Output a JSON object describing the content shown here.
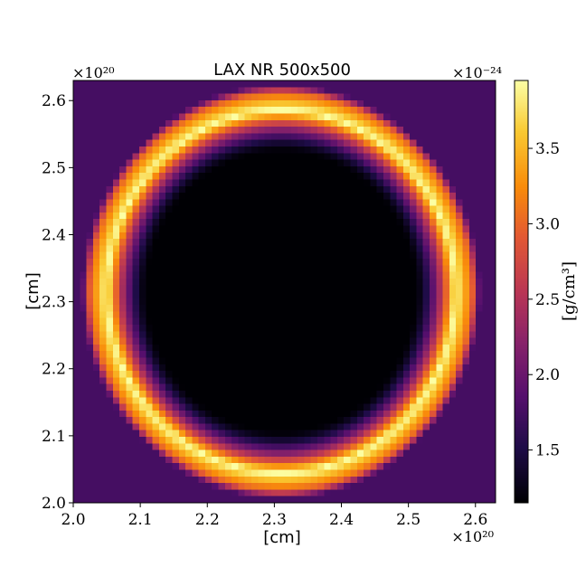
{
  "chart_data": {
    "type": "heatmap",
    "title": "LAX NR 500x500",
    "xlabel": "[cm]",
    "ylabel": "[cm]",
    "x_multiplier": "×10²⁰",
    "y_multiplier": "×10²⁰",
    "colorbar_multiplier": "×10⁻²⁴",
    "colorbar_label": "[g/cm³]",
    "colormap": "inferno",
    "xlim": [
      2.0,
      2.63
    ],
    "ylim": [
      2.0,
      2.63
    ],
    "clim": [
      1.15,
      3.95
    ],
    "x_ticks": [
      "2.0",
      "2.1",
      "2.2",
      "2.3",
      "2.4",
      "2.5",
      "2.6"
    ],
    "y_ticks": [
      "2.0",
      "2.1",
      "2.2",
      "2.3",
      "2.4",
      "2.5",
      "2.6"
    ],
    "colorbar_ticks": [
      "1.5",
      "2.0",
      "2.5",
      "3.0",
      "3.5"
    ],
    "feature": {
      "shape": "ring (shell) with evacuated interior",
      "center": [
        2.31,
        2.315
      ],
      "cavity_radius": 0.215,
      "ring_peak_radius": 0.26,
      "ring_outer_radius": 0.285,
      "background_density": 1.75,
      "cavity_density": 1.15,
      "ring_density": 3.95
    }
  }
}
